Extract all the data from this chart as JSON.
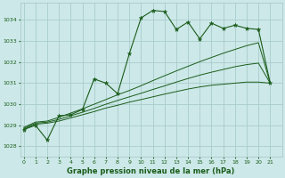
{
  "title": "Graphe pression niveau de la mer (hPa)",
  "bg_color": "#cce8e8",
  "grid_color": "#aacccc",
  "line_color": "#1a5c1a",
  "x_labels": [
    "0",
    "1",
    "2",
    "3",
    "4",
    "5",
    "6",
    "7",
    "8",
    "9",
    "10",
    "11",
    "12",
    "13",
    "14",
    "15",
    "16",
    "17",
    "18",
    "19",
    "20",
    "21"
  ],
  "ylim": [
    1027.5,
    1034.8
  ],
  "xlim": [
    -0.3,
    22.0
  ],
  "yticks": [
    1028,
    1029,
    1030,
    1031,
    1032,
    1033,
    1034
  ],
  "pressure_main": [
    1028.8,
    1029.0,
    1028.3,
    1029.45,
    1029.5,
    1029.75,
    1031.2,
    1031.0,
    1030.5,
    1032.4,
    1034.1,
    1034.45,
    1034.4,
    1033.55,
    1033.9,
    1033.1,
    1033.85,
    1033.6,
    1033.75,
    1033.6,
    1033.55,
    1031.0
  ],
  "pressure_smooth1": [
    1028.8,
    1029.05,
    1029.1,
    1029.2,
    1029.35,
    1029.5,
    1029.65,
    1029.82,
    1029.95,
    1030.1,
    1030.22,
    1030.35,
    1030.48,
    1030.6,
    1030.72,
    1030.82,
    1030.9,
    1030.95,
    1031.0,
    1031.05,
    1031.05,
    1031.0
  ],
  "pressure_smooth2": [
    1028.85,
    1029.1,
    1029.15,
    1029.28,
    1029.45,
    1029.62,
    1029.8,
    1030.0,
    1030.18,
    1030.35,
    1030.52,
    1030.7,
    1030.87,
    1031.05,
    1031.22,
    1031.38,
    1031.52,
    1031.65,
    1031.78,
    1031.88,
    1031.95,
    1031.0
  ],
  "pressure_smooth3": [
    1028.9,
    1029.15,
    1029.2,
    1029.38,
    1029.58,
    1029.78,
    1030.0,
    1030.22,
    1030.45,
    1030.65,
    1030.88,
    1031.12,
    1031.35,
    1031.58,
    1031.8,
    1032.02,
    1032.22,
    1032.42,
    1032.6,
    1032.78,
    1032.92,
    1031.0
  ]
}
